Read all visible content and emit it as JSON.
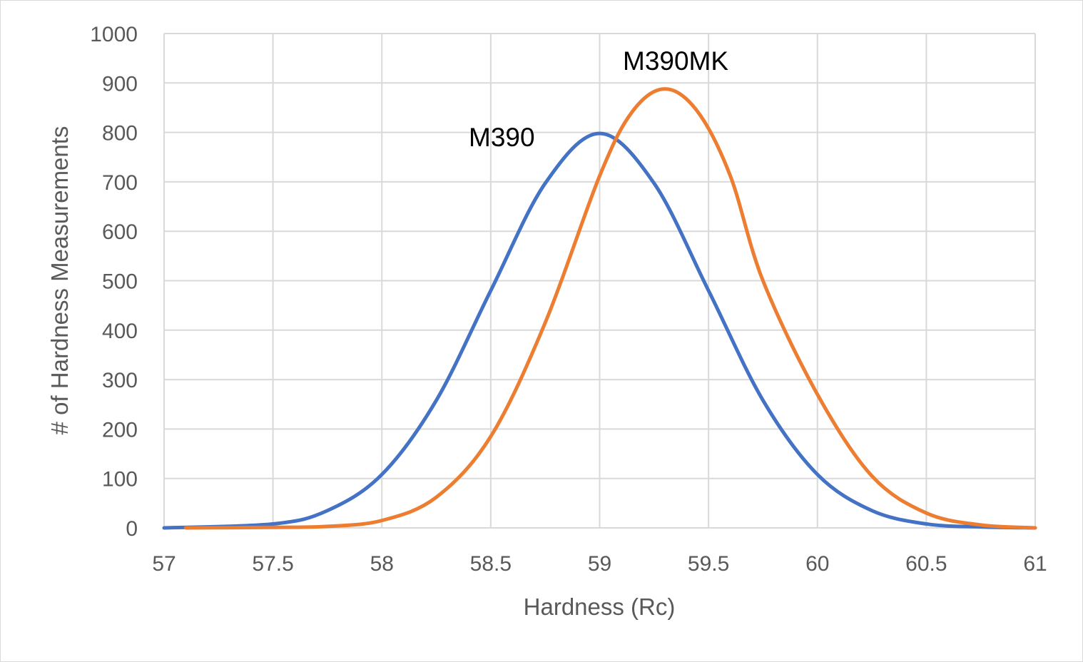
{
  "chart_data": {
    "type": "line",
    "title": "",
    "xlabel": "Hardness (Rc)",
    "ylabel": "# of Hardness Measurements",
    "xlim": [
      57,
      61
    ],
    "ylim": [
      0,
      1000
    ],
    "x_ticks": [
      "57",
      "57.5",
      "58",
      "58.5",
      "59",
      "59.5",
      "60",
      "60.5",
      "61"
    ],
    "x_tick_values": [
      57,
      57.5,
      58,
      58.5,
      59,
      59.5,
      60,
      60.5,
      61
    ],
    "y_ticks": [
      "0",
      "100",
      "200",
      "300",
      "400",
      "500",
      "600",
      "700",
      "800",
      "900",
      "1000"
    ],
    "y_tick_values": [
      0,
      100,
      200,
      300,
      400,
      500,
      600,
      700,
      800,
      900,
      1000
    ],
    "grid": true,
    "legend": "none",
    "series": [
      {
        "name": "M390",
        "color": "#4472C4",
        "x": [
          57.0,
          57.5,
          57.75,
          58.0,
          58.25,
          58.5,
          58.75,
          59.0,
          59.25,
          59.5,
          59.75,
          60.0,
          60.25,
          60.5,
          60.75,
          61.0
        ],
        "values": [
          0,
          8,
          35,
          108,
          258,
          480,
          697,
          798,
          697,
          480,
          258,
          108,
          35,
          8,
          2,
          0
        ]
      },
      {
        "name": "M390MK",
        "color": "#ED7D31",
        "x": [
          57.1,
          57.5,
          57.75,
          58.0,
          58.25,
          58.5,
          58.75,
          59.0,
          59.15,
          59.3,
          59.45,
          59.6,
          59.75,
          60.0,
          60.25,
          60.5,
          60.75,
          61.0
        ],
        "values": [
          0,
          1,
          3,
          15,
          62,
          185,
          415,
          712,
          842,
          888,
          842,
          712,
          500,
          270,
          105,
          30,
          6,
          0
        ]
      }
    ],
    "annotations": [
      {
        "text": "M390",
        "series": "M390"
      },
      {
        "text": "M390MK",
        "series": "M390MK"
      }
    ]
  }
}
